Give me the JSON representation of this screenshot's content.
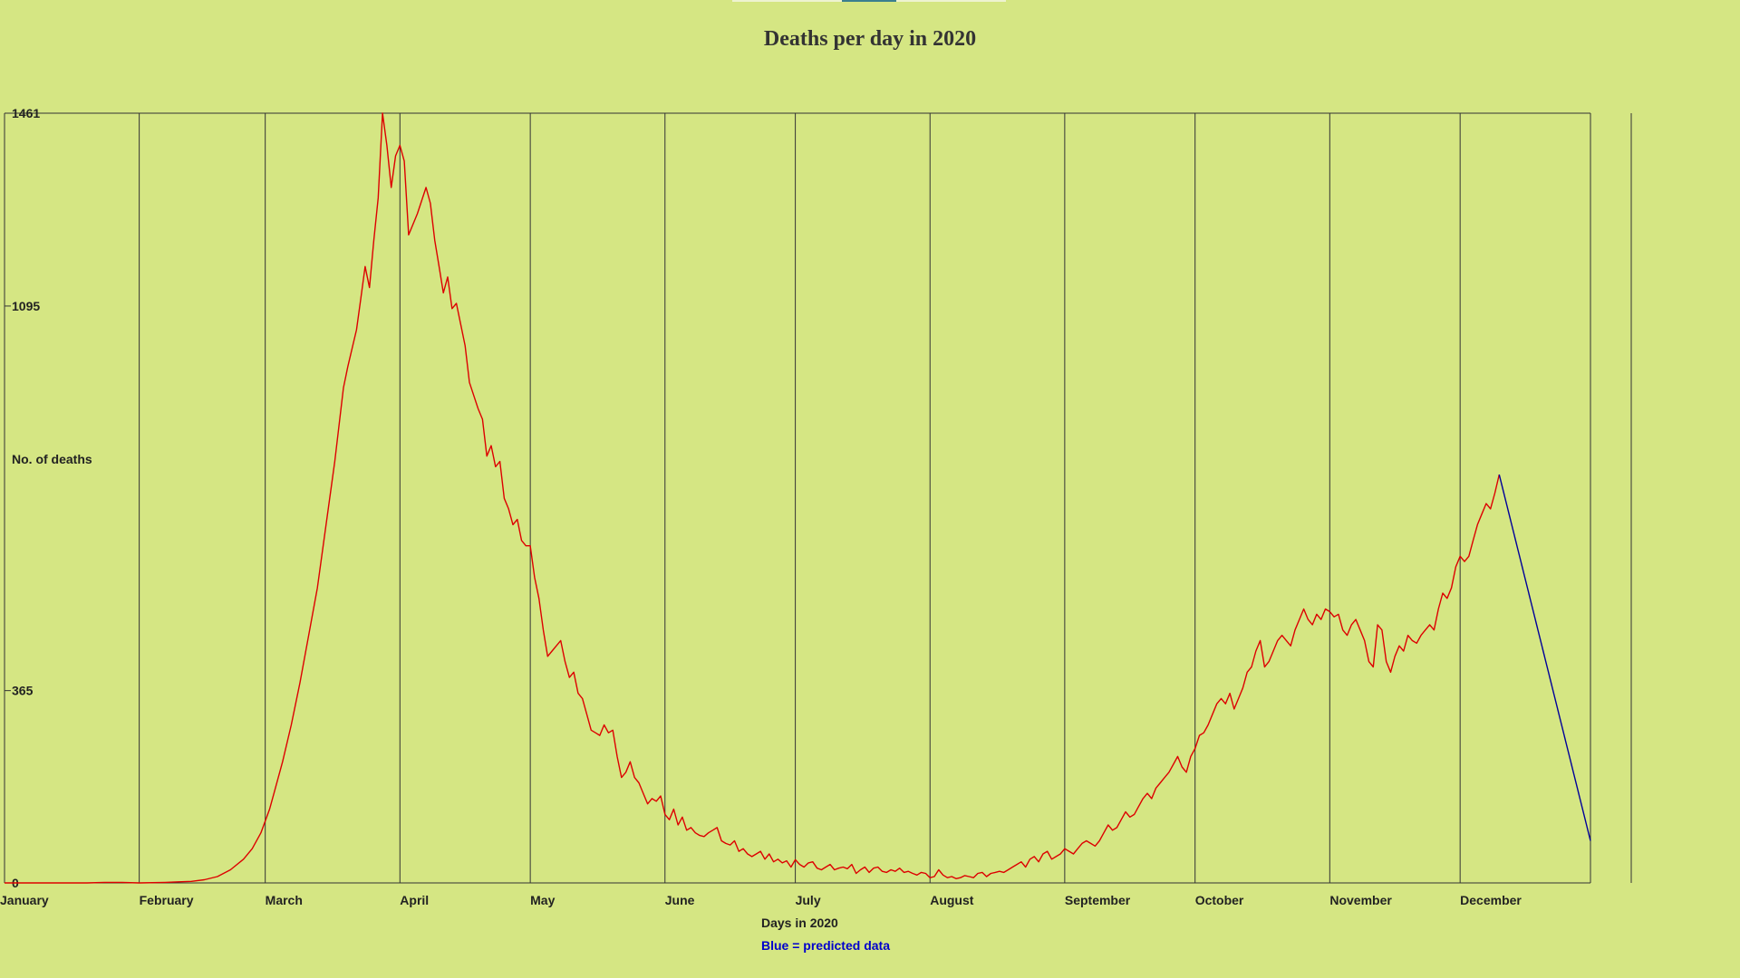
{
  "chart_data": {
    "type": "line",
    "title": "Deaths per day in 2020",
    "xlabel": "Days in 2020",
    "ylabel": "No. of deaths",
    "note": "Blue = predicted data",
    "ylim": [
      0,
      1461
    ],
    "y_ticks": [
      0,
      365,
      1095,
      1461
    ],
    "months": [
      "January",
      "February",
      "March",
      "April",
      "May",
      "June",
      "July",
      "August",
      "September",
      "October",
      "November",
      "December"
    ],
    "grid": "vertical lines at month boundaries",
    "colors": {
      "actual": "#dd0000",
      "predicted": "#000099",
      "background": "#d5e683"
    },
    "series": [
      {
        "name": "actual",
        "points": [
          [
            1,
            0
          ],
          [
            20,
            0
          ],
          [
            24,
            1
          ],
          [
            28,
            1
          ],
          [
            32,
            0
          ],
          [
            38,
            1
          ],
          [
            41,
            2
          ],
          [
            44,
            3
          ],
          [
            47,
            6
          ],
          [
            50,
            12
          ],
          [
            53,
            25
          ],
          [
            56,
            45
          ],
          [
            58,
            65
          ],
          [
            60,
            95
          ],
          [
            62,
            140
          ],
          [
            63,
            170
          ],
          [
            65,
            230
          ],
          [
            67,
            300
          ],
          [
            69,
            380
          ],
          [
            71,
            470
          ],
          [
            73,
            560
          ],
          [
            75,
            680
          ],
          [
            77,
            800
          ],
          [
            79,
            940
          ],
          [
            80,
            980
          ],
          [
            82,
            1050
          ],
          [
            83,
            1110
          ],
          [
            84,
            1170
          ],
          [
            85,
            1130
          ],
          [
            86,
            1220
          ],
          [
            87,
            1300
          ],
          [
            88,
            1461
          ],
          [
            89,
            1400
          ],
          [
            90,
            1320
          ],
          [
            91,
            1380
          ],
          [
            92,
            1400
          ],
          [
            93,
            1370
          ],
          [
            94,
            1230
          ],
          [
            96,
            1270
          ],
          [
            98,
            1320
          ],
          [
            99,
            1290
          ],
          [
            100,
            1220
          ],
          [
            101,
            1170
          ],
          [
            102,
            1120
          ],
          [
            103,
            1150
          ],
          [
            104,
            1090
          ],
          [
            105,
            1100
          ],
          [
            106,
            1060
          ],
          [
            107,
            1020
          ],
          [
            108,
            950
          ],
          [
            110,
            900
          ],
          [
            111,
            880
          ],
          [
            112,
            810
          ],
          [
            113,
            830
          ],
          [
            114,
            790
          ],
          [
            115,
            800
          ],
          [
            116,
            730
          ],
          [
            117,
            710
          ],
          [
            118,
            680
          ],
          [
            119,
            690
          ],
          [
            120,
            650
          ],
          [
            121,
            640
          ],
          [
            122,
            640
          ],
          [
            123,
            580
          ],
          [
            124,
            540
          ],
          [
            125,
            480
          ],
          [
            126,
            430
          ],
          [
            127,
            440
          ],
          [
            128,
            450
          ],
          [
            129,
            460
          ],
          [
            130,
            420
          ],
          [
            131,
            390
          ],
          [
            132,
            400
          ],
          [
            133,
            360
          ],
          [
            134,
            350
          ],
          [
            135,
            320
          ],
          [
            136,
            290
          ],
          [
            137,
            285
          ],
          [
            138,
            280
          ],
          [
            139,
            300
          ],
          [
            140,
            285
          ],
          [
            141,
            290
          ],
          [
            142,
            240
          ],
          [
            143,
            200
          ],
          [
            144,
            210
          ],
          [
            145,
            230
          ],
          [
            146,
            200
          ],
          [
            147,
            190
          ],
          [
            148,
            170
          ],
          [
            149,
            150
          ],
          [
            150,
            160
          ],
          [
            151,
            155
          ],
          [
            152,
            165
          ],
          [
            153,
            130
          ],
          [
            154,
            120
          ],
          [
            155,
            140
          ],
          [
            156,
            110
          ],
          [
            157,
            125
          ],
          [
            158,
            100
          ],
          [
            159,
            105
          ],
          [
            160,
            95
          ],
          [
            161,
            90
          ],
          [
            162,
            88
          ],
          [
            163,
            95
          ],
          [
            164,
            100
          ],
          [
            165,
            105
          ],
          [
            166,
            80
          ],
          [
            167,
            75
          ],
          [
            168,
            72
          ],
          [
            169,
            80
          ],
          [
            170,
            60
          ],
          [
            171,
            65
          ],
          [
            172,
            55
          ],
          [
            173,
            50
          ],
          [
            174,
            55
          ],
          [
            175,
            60
          ],
          [
            176,
            45
          ],
          [
            177,
            55
          ],
          [
            178,
            40
          ],
          [
            179,
            45
          ],
          [
            180,
            38
          ],
          [
            181,
            42
          ],
          [
            182,
            30
          ],
          [
            183,
            44
          ],
          [
            184,
            35
          ],
          [
            185,
            30
          ],
          [
            186,
            38
          ],
          [
            187,
            40
          ],
          [
            188,
            28
          ],
          [
            189,
            25
          ],
          [
            190,
            30
          ],
          [
            191,
            35
          ],
          [
            192,
            25
          ],
          [
            193,
            28
          ],
          [
            194,
            30
          ],
          [
            195,
            27
          ],
          [
            196,
            35
          ],
          [
            197,
            18
          ],
          [
            198,
            25
          ],
          [
            199,
            30
          ],
          [
            200,
            20
          ],
          [
            201,
            28
          ],
          [
            202,
            30
          ],
          [
            203,
            22
          ],
          [
            204,
            20
          ],
          [
            205,
            25
          ],
          [
            206,
            22
          ],
          [
            207,
            28
          ],
          [
            208,
            20
          ],
          [
            209,
            22
          ],
          [
            210,
            18
          ],
          [
            211,
            15
          ],
          [
            212,
            20
          ],
          [
            213,
            18
          ],
          [
            214,
            10
          ],
          [
            215,
            12
          ],
          [
            216,
            25
          ],
          [
            217,
            15
          ],
          [
            218,
            10
          ],
          [
            219,
            12
          ],
          [
            220,
            8
          ],
          [
            221,
            10
          ],
          [
            222,
            14
          ],
          [
            223,
            12
          ],
          [
            224,
            10
          ],
          [
            225,
            18
          ],
          [
            226,
            20
          ],
          [
            227,
            12
          ],
          [
            228,
            18
          ],
          [
            229,
            20
          ],
          [
            230,
            22
          ],
          [
            231,
            20
          ],
          [
            232,
            25
          ],
          [
            233,
            30
          ],
          [
            234,
            35
          ],
          [
            235,
            40
          ],
          [
            236,
            30
          ],
          [
            237,
            45
          ],
          [
            238,
            50
          ],
          [
            239,
            40
          ],
          [
            240,
            55
          ],
          [
            241,
            60
          ],
          [
            242,
            45
          ],
          [
            243,
            50
          ],
          [
            244,
            55
          ],
          [
            245,
            65
          ],
          [
            246,
            60
          ],
          [
            247,
            55
          ],
          [
            248,
            65
          ],
          [
            249,
            75
          ],
          [
            250,
            80
          ],
          [
            251,
            75
          ],
          [
            252,
            70
          ],
          [
            253,
            80
          ],
          [
            254,
            95
          ],
          [
            255,
            110
          ],
          [
            256,
            100
          ],
          [
            257,
            105
          ],
          [
            258,
            120
          ],
          [
            259,
            135
          ],
          [
            260,
            125
          ],
          [
            261,
            130
          ],
          [
            262,
            145
          ],
          [
            263,
            160
          ],
          [
            264,
            170
          ],
          [
            265,
            160
          ],
          [
            266,
            180
          ],
          [
            267,
            190
          ],
          [
            268,
            200
          ],
          [
            269,
            210
          ],
          [
            270,
            225
          ],
          [
            271,
            240
          ],
          [
            272,
            220
          ],
          [
            273,
            210
          ],
          [
            274,
            240
          ],
          [
            275,
            255
          ],
          [
            276,
            280
          ],
          [
            277,
            285
          ],
          [
            278,
            300
          ],
          [
            279,
            320
          ],
          [
            280,
            340
          ],
          [
            281,
            350
          ],
          [
            282,
            340
          ],
          [
            283,
            360
          ],
          [
            284,
            330
          ],
          [
            285,
            350
          ],
          [
            286,
            370
          ],
          [
            287,
            400
          ],
          [
            288,
            410
          ],
          [
            289,
            440
          ],
          [
            290,
            460
          ],
          [
            291,
            410
          ],
          [
            292,
            420
          ],
          [
            293,
            440
          ],
          [
            294,
            460
          ],
          [
            295,
            470
          ],
          [
            296,
            460
          ],
          [
            297,
            450
          ],
          [
            298,
            480
          ],
          [
            299,
            500
          ],
          [
            300,
            520
          ],
          [
            301,
            500
          ],
          [
            302,
            490
          ],
          [
            303,
            510
          ],
          [
            304,
            500
          ],
          [
            305,
            520
          ],
          [
            306,
            515
          ],
          [
            307,
            505
          ],
          [
            308,
            510
          ],
          [
            309,
            480
          ],
          [
            310,
            470
          ],
          [
            311,
            490
          ],
          [
            312,
            500
          ],
          [
            313,
            480
          ],
          [
            314,
            460
          ],
          [
            315,
            420
          ],
          [
            316,
            410
          ],
          [
            317,
            490
          ],
          [
            318,
            480
          ],
          [
            319,
            420
          ],
          [
            320,
            400
          ],
          [
            321,
            430
          ],
          [
            322,
            450
          ],
          [
            323,
            440
          ],
          [
            324,
            470
          ],
          [
            325,
            460
          ],
          [
            326,
            455
          ],
          [
            327,
            470
          ],
          [
            328,
            480
          ],
          [
            329,
            490
          ],
          [
            330,
            480
          ],
          [
            331,
            520
          ],
          [
            332,
            550
          ],
          [
            333,
            540
          ],
          [
            334,
            560
          ],
          [
            335,
            600
          ],
          [
            336,
            620
          ],
          [
            337,
            610
          ],
          [
            338,
            620
          ],
          [
            339,
            650
          ],
          [
            340,
            680
          ],
          [
            341,
            700
          ],
          [
            342,
            720
          ],
          [
            343,
            710
          ],
          [
            344,
            740
          ],
          [
            345,
            775
          ]
        ]
      },
      {
        "name": "predicted",
        "points": [
          [
            345,
            775
          ],
          [
            366,
            80
          ]
        ]
      }
    ]
  }
}
